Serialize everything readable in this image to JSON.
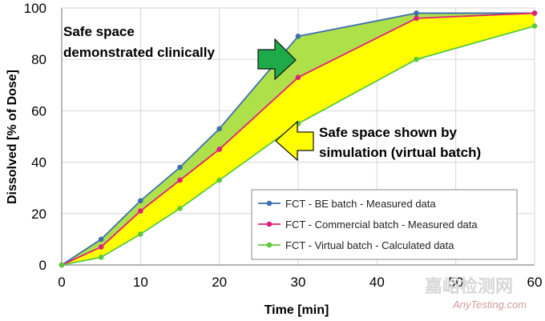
{
  "chart_data": {
    "type": "line",
    "title": "",
    "xlabel": "Time [min]",
    "ylabel": "Dissolved [% of Dose]",
    "xlim": [
      0,
      60
    ],
    "ylim": [
      0,
      100
    ],
    "xticks": [
      0,
      10,
      20,
      30,
      40,
      50,
      60
    ],
    "yticks": [
      0,
      20,
      40,
      60,
      80,
      100
    ],
    "grid": true,
    "legend_position": "bottom-right",
    "series": [
      {
        "name": "FCT - BE batch - Measured data",
        "color": "#3d6fb0",
        "x": [
          0,
          5,
          10,
          15,
          20,
          30,
          45,
          60
        ],
        "values": [
          0,
          10,
          25,
          38,
          53,
          89,
          98,
          98
        ]
      },
      {
        "name": "FCT - Commercial batch - Measured data",
        "color": "#e0207a",
        "x": [
          0,
          5,
          10,
          15,
          20,
          30,
          45,
          60
        ],
        "values": [
          0,
          7,
          21,
          33,
          45,
          73,
          96,
          98
        ]
      },
      {
        "name": "FCT - Virtual batch - Calculated data",
        "color": "#5cc83c",
        "x": [
          0,
          5,
          10,
          15,
          20,
          30,
          45,
          60
        ],
        "values": [
          0,
          3,
          12,
          22,
          33,
          55,
          80,
          93
        ]
      }
    ],
    "fills": {
      "upper_region_color": "#aee04a",
      "lower_region_color": "#ffff00"
    },
    "annotations": [
      {
        "text_lines": [
          "Safe space",
          "demonstrated clinically"
        ],
        "arrow_color": "#1faa4a"
      },
      {
        "text_lines": [
          "Safe space shown by",
          "simulation (virtual batch)"
        ],
        "arrow_color": "#ffff00"
      }
    ]
  },
  "watermark": {
    "cn": "嘉峪检测网",
    "en": "AnyTesting.com"
  }
}
